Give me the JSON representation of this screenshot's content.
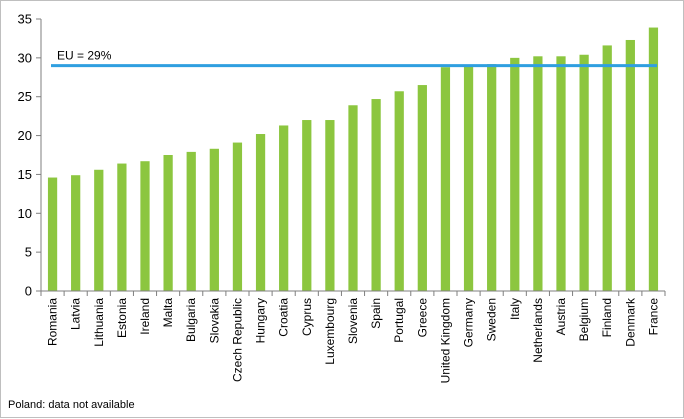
{
  "chart_data": {
    "type": "bar",
    "categories": [
      "Romania",
      "Latvia",
      "Lithuania",
      "Estonia",
      "Ireland",
      "Malta",
      "Bulgaria",
      "Slovakia",
      "Czech Republic",
      "Hungary",
      "Croatia",
      "Cyprus",
      "Luxembourg",
      "Slovenia",
      "Spain",
      "Portugal",
      "Greece",
      "United Kingdom",
      "Germany",
      "Sweden",
      "Italy",
      "Netherlands",
      "Austria",
      "Belgium",
      "Finland",
      "Denmark",
      "France"
    ],
    "values": [
      14.6,
      14.9,
      15.6,
      16.4,
      16.7,
      17.5,
      17.9,
      18.3,
      19.1,
      20.2,
      21.3,
      22.0,
      22.0,
      23.9,
      24.7,
      25.7,
      26.5,
      28.8,
      29.0,
      29.2,
      30.0,
      30.2,
      30.2,
      30.4,
      31.6,
      32.3,
      33.9
    ],
    "title": "",
    "xlabel": "",
    "ylabel": "",
    "ylim": [
      0,
      35
    ],
    "yticks": [
      0,
      5,
      10,
      15,
      20,
      25,
      30,
      35
    ],
    "grid": false,
    "bar_color": "#8cc63f",
    "reference_line": {
      "value": 29,
      "label": "EU = 29%",
      "color": "#2f9fe0"
    },
    "footnote": "Poland: data not available"
  }
}
